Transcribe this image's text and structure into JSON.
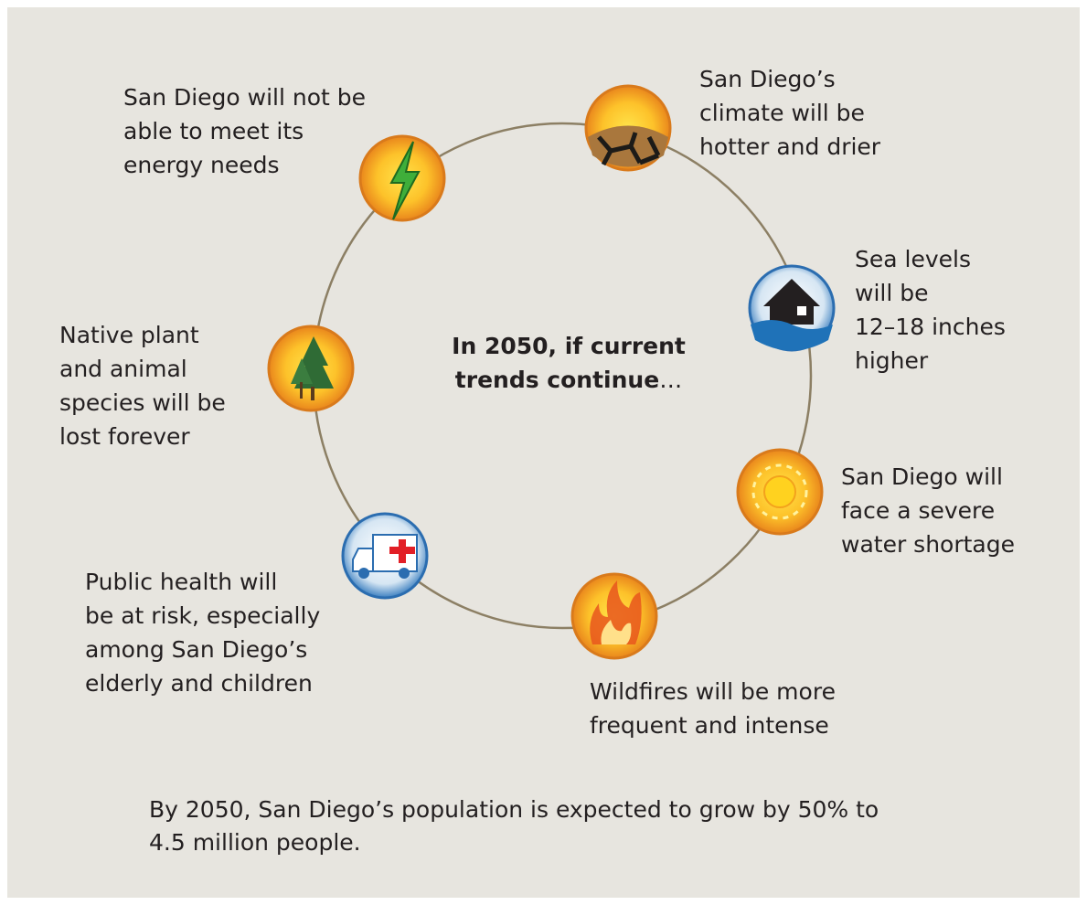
{
  "center": {
    "lines": [
      "In 2050, if current",
      "trends continue"
    ],
    "ellipsis": "…"
  },
  "nodes": [
    {
      "label": [
        "San Diego will not be",
        "able to meet its",
        "energy needs"
      ]
    },
    {
      "label": [
        "San Diego’s",
        "climate will be",
        "hotter and drier"
      ]
    },
    {
      "label": [
        "Sea levels",
        "will be",
        "12–18 inches",
        "higher"
      ]
    },
    {
      "label": [
        "San Diego will",
        "face a severe",
        "water shortage"
      ]
    },
    {
      "label": [
        "Wildfires will be more",
        "frequent and intense"
      ]
    },
    {
      "label": [
        "Public health will",
        "be at risk, especially",
        "among San Diego’s",
        "elderly and children"
      ]
    },
    {
      "label": [
        "Native plant",
        "and animal",
        "species will be",
        "lost forever"
      ]
    }
  ],
  "footer": [
    "By 2050, San Diego’s population is expected to grow by 50% to",
    "4.5 million people."
  ]
}
